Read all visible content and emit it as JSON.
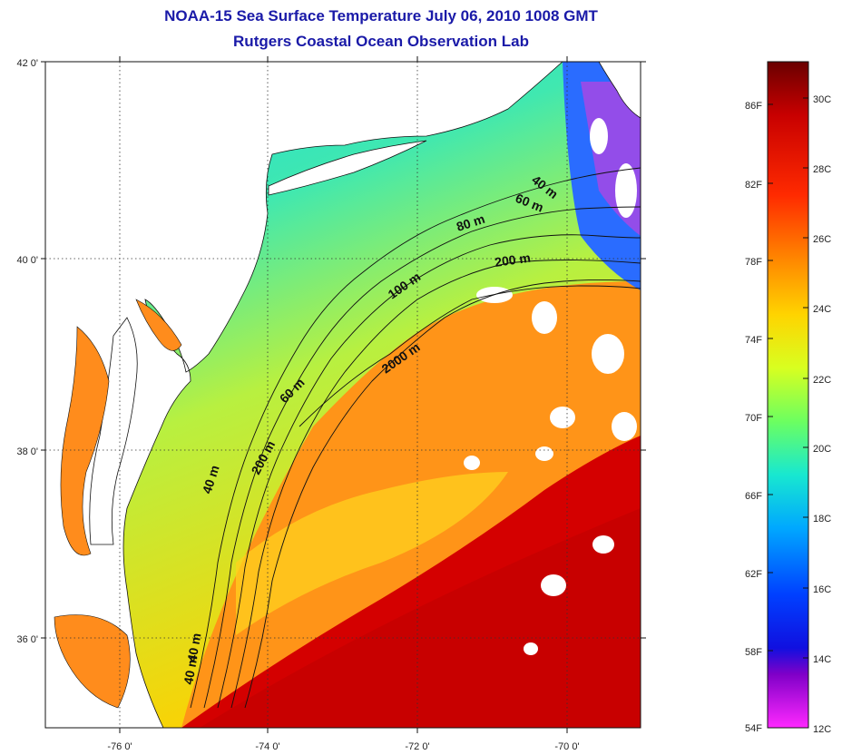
{
  "title": "NOAA-15 Sea Surface Temperature July 06, 2010 1008 GMT",
  "subtitle": "Rutgers Coastal Ocean Observation Lab",
  "latitude_labels": [
    "42 0'",
    "40 0'",
    "38 0'",
    "36 0'"
  ],
  "longitude_labels": [
    "-76 0'",
    "-74 0'",
    "-72 0'",
    "-70 0'"
  ],
  "isobath_labels": [
    {
      "id": "40m-ne",
      "text": "40 m"
    },
    {
      "id": "60m-ne",
      "text": "60 m"
    },
    {
      "id": "80m-ne",
      "text": "80 m"
    },
    {
      "id": "200m-ne",
      "text": "200 m"
    },
    {
      "id": "100m",
      "text": "100 m"
    },
    {
      "id": "2000m",
      "text": "2000 m"
    },
    {
      "id": "60m-sw",
      "text": "60 m"
    },
    {
      "id": "200m-sw",
      "text": "200 m"
    },
    {
      "id": "40m-mid",
      "text": "40 m"
    },
    {
      "id": "40m-south",
      "text": "40 m"
    },
    {
      "id": "40m-south2",
      "text": "40 m"
    }
  ],
  "colorbar": {
    "fahrenheit_labels": [
      "86F",
      "82F",
      "78F",
      "74F",
      "70F",
      "66F",
      "62F",
      "58F",
      "54F"
    ],
    "celsius_labels": [
      "30C",
      "28C",
      "26C",
      "24C",
      "22C",
      "20C",
      "18C",
      "16C",
      "14C",
      "12C"
    ],
    "colors": [
      "#6a0000",
      "#c80000",
      "#ff2a00",
      "#ff8a00",
      "#ffd400",
      "#d8ff20",
      "#6cff60",
      "#18e8d0",
      "#00a8ff",
      "#0040ff",
      "#1010e0",
      "#8000c8",
      "#ff28ff"
    ]
  }
}
